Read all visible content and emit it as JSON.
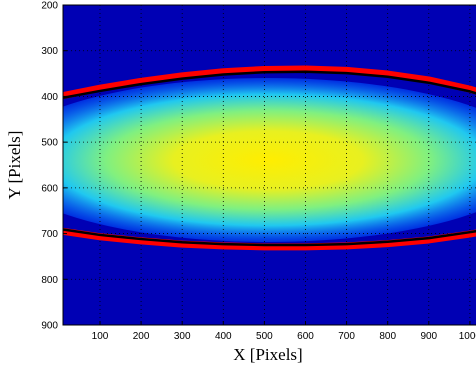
{
  "chart_data": {
    "type": "line",
    "xlabel": "X [Pixels]",
    "ylabel": "Y [Pixels]",
    "x": [
      10,
      100,
      200,
      300,
      400,
      500,
      600,
      700,
      800,
      900,
      1000,
      1040
    ],
    "series": [
      {
        "color": "#ff0000",
        "line_width": 7,
        "values": [
          398,
          382,
          367,
          355,
          346,
          341,
          340,
          343,
          351,
          364,
          384,
          395
        ]
      },
      {
        "color": "#ff0000",
        "line_width": 7,
        "values": [
          695,
          707,
          716,
          723,
          727,
          729,
          729,
          727,
          722,
          714,
          701,
          695
        ]
      },
      {
        "color": "#000000",
        "line_width": 2.5,
        "values": [
          403,
          388,
          373,
          361,
          352,
          347,
          346,
          349,
          357,
          370,
          389,
          400
        ]
      },
      {
        "color": "#000000",
        "line_width": 2.5,
        "values": [
          691,
          703,
          712,
          719,
          723,
          725,
          725,
          723,
          718,
          710,
          697,
          691
        ]
      }
    ],
    "xlim": [
      10,
      1040
    ],
    "ylim": [
      900,
      200
    ],
    "y_inverted": true,
    "xticks": [
      100,
      200,
      300,
      400,
      500,
      600,
      700,
      800,
      900,
      1000
    ],
    "yticks": [
      200,
      300,
      400,
      500,
      600,
      700,
      800,
      900
    ],
    "grid": true
  }
}
